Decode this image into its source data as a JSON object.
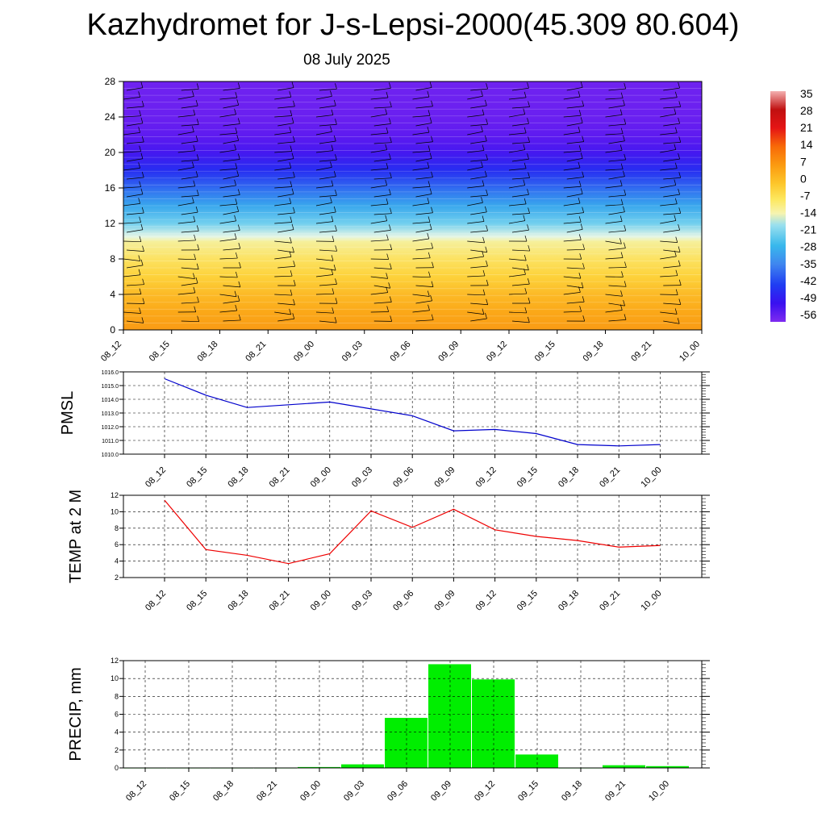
{
  "title": "Kazhydromet for J-s-Lepsi-2000(45.309 80.604)",
  "date": "08 July 2025",
  "time_labels": [
    "08_12",
    "08_15",
    "08_18",
    "08_21",
    "09_00",
    "09_03",
    "09_06",
    "09_09",
    "09_12",
    "09_15",
    "09_18",
    "09_21",
    "10_00"
  ],
  "colors": {
    "pmsl_line": "#0000cc",
    "temp_line": "#ee0000",
    "precip_bar": "#00ee00",
    "grid": "#000000"
  },
  "chart_data": [
    {
      "type": "heatmap",
      "yticks": [
        "0",
        "4",
        "8",
        "12",
        "16",
        "20",
        "24",
        "28"
      ],
      "ylim": [
        0,
        28
      ],
      "colorbar_labels": [
        "35",
        "28",
        "21",
        "14",
        "7",
        "0",
        "-7",
        "-14",
        "-21",
        "-28",
        "-35",
        "-42",
        "-49",
        "-56"
      ],
      "colorbar_range": [
        -63,
        42
      ],
      "layers": [
        {
          "y": 0,
          "value": 10
        },
        {
          "y": 2,
          "value": 7
        },
        {
          "y": 4,
          "value": 4
        },
        {
          "y": 6,
          "value": 0
        },
        {
          "y": 8,
          "value": -4
        },
        {
          "y": 10,
          "value": -9
        },
        {
          "y": 10.5,
          "value": -14
        },
        {
          "y": 12,
          "value": -22
        },
        {
          "y": 14,
          "value": -30
        },
        {
          "y": 16,
          "value": -38
        },
        {
          "y": 18,
          "value": -46
        },
        {
          "y": 20,
          "value": -53
        },
        {
          "y": 22,
          "value": -57
        },
        {
          "y": 24,
          "value": -59
        },
        {
          "y": 28,
          "value": -60
        }
      ],
      "wind_barbs": "wind barbs overlay"
    },
    {
      "type": "line",
      "ylabel": "PMSL",
      "ylim": [
        1010,
        1016
      ],
      "yticks": [
        "1010.0",
        "1011.0",
        "1012.0",
        "1013.0",
        "1014.0",
        "1015.0",
        "1016.0"
      ],
      "series": [
        {
          "values": [
            1015.5,
            1014.3,
            1013.4,
            1013.6,
            1013.8,
            1013.3,
            1012.8,
            1011.7,
            1011.8,
            1011.5,
            1010.7,
            1010.6,
            1010.7
          ]
        }
      ]
    },
    {
      "type": "line",
      "ylabel": "TEMP at 2 M",
      "ylim": [
        2,
        12
      ],
      "yticks": [
        "2",
        "4",
        "6",
        "8",
        "10",
        "12"
      ],
      "series": [
        {
          "values": [
            11.4,
            5.4,
            4.7,
            3.7,
            4.9,
            10.1,
            8.1,
            10.3,
            7.8,
            7.0,
            6.5,
            5.7,
            5.9
          ]
        }
      ]
    },
    {
      "type": "bar",
      "ylabel": "PRECIP, mm",
      "ylim": [
        0,
        12
      ],
      "yticks": [
        "0",
        "2",
        "4",
        "6",
        "8",
        "10",
        "12"
      ],
      "values": [
        0,
        0,
        0,
        0,
        0.1,
        0.4,
        5.6,
        11.6,
        9.9,
        1.5,
        0,
        0.3,
        0.2
      ]
    }
  ]
}
